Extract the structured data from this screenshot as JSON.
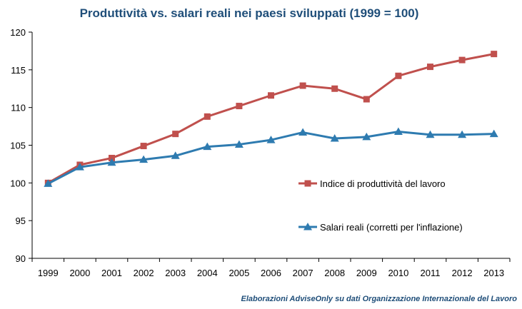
{
  "colors": {
    "productivity": "#c0504d",
    "wages": "#2e7bb0",
    "title": "#1f4e79",
    "axis": "#000000"
  },
  "chart_data": {
    "type": "line",
    "title": "Produttività  vs. salari reali nei paesi sviluppati  (1999 = 100)",
    "categories": [
      "1999",
      "2000",
      "2001",
      "2002",
      "2003",
      "2004",
      "2005",
      "2006",
      "2007",
      "2008",
      "2009",
      "2010",
      "2011",
      "2012",
      "2013"
    ],
    "series": [
      {
        "name": "Indice di produttività del lavoro",
        "marker": "square",
        "values": [
          100,
          102.4,
          103.3,
          104.9,
          106.5,
          108.8,
          110.2,
          111.6,
          112.9,
          112.5,
          111.1,
          114.2,
          115.4,
          116.3,
          117.1
        ]
      },
      {
        "name": "Salari reali (corretti per l'inflazione)",
        "marker": "triangle",
        "values": [
          99.9,
          102.1,
          102.7,
          103.1,
          103.6,
          104.8,
          105.1,
          105.7,
          106.7,
          105.9,
          106.1,
          106.8,
          106.4,
          106.4,
          106.5
        ]
      }
    ],
    "ylim": [
      90,
      120
    ],
    "yticks": [
      90,
      95,
      100,
      105,
      110,
      115,
      120
    ],
    "grid": false,
    "legend_position": "lower-right",
    "source": "Elaborazioni AdviseOnly su dati Organizzazione Internazionale del Lavoro"
  }
}
